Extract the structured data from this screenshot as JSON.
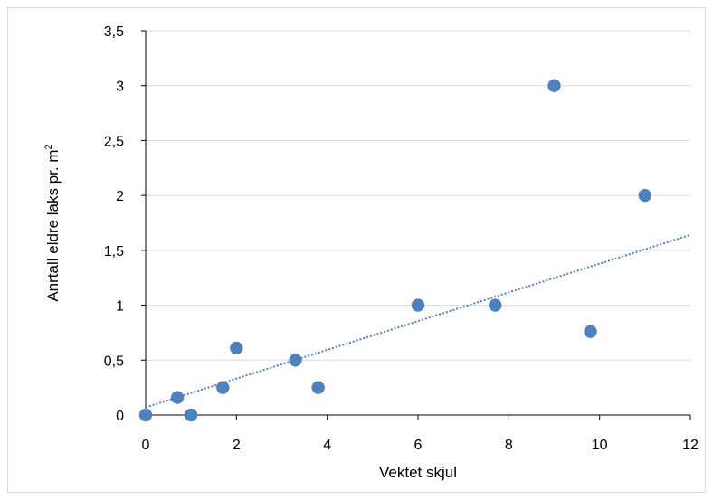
{
  "chart_data": {
    "type": "scatter",
    "title": "",
    "xlabel": "Vektet skjul",
    "ylabel": "Anrtall eldre laks pr. m",
    "ylabel_sup": "2",
    "xlim": [
      0,
      12
    ],
    "ylim": [
      0,
      3.5
    ],
    "x_ticks": [
      0,
      2,
      4,
      6,
      8,
      10,
      12
    ],
    "x_tick_labels": [
      "0",
      "2",
      "4",
      "6",
      "8",
      "10",
      "12"
    ],
    "y_ticks": [
      0,
      0.5,
      1,
      1.5,
      2,
      2.5,
      3,
      3.5
    ],
    "y_tick_labels": [
      "0",
      "0,5",
      "1",
      "1,5",
      "2",
      "2,5",
      "3",
      "3,5"
    ],
    "grid": true,
    "series": [
      {
        "color": "#4f81bd",
        "points": [
          {
            "x": 0,
            "y": 0
          },
          {
            "x": 0.7,
            "y": 0.16
          },
          {
            "x": 1,
            "y": 0
          },
          {
            "x": 1.7,
            "y": 0.25
          },
          {
            "x": 2,
            "y": 0.61
          },
          {
            "x": 3.3,
            "y": 0.5
          },
          {
            "x": 3.8,
            "y": 0.25
          },
          {
            "x": 6,
            "y": 1
          },
          {
            "x": 7.7,
            "y": 1
          },
          {
            "x": 9,
            "y": 3
          },
          {
            "x": 9.8,
            "y": 0.76
          },
          {
            "x": 11,
            "y": 2
          }
        ]
      }
    ],
    "trendline": {
      "type": "linear",
      "style": "dotted",
      "color": "#4f81bd",
      "start": {
        "x": 0,
        "y": 0.07
      },
      "end": {
        "x": 12,
        "y": 1.64
      }
    }
  }
}
